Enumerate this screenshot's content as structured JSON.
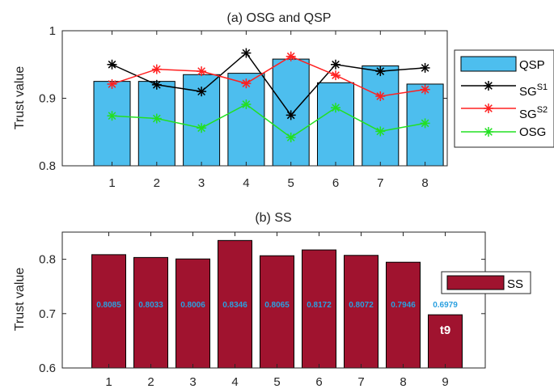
{
  "chart_data": [
    {
      "type": "bar",
      "title": "(a) OSG and QSP",
      "ylabel": "Trust value",
      "xlabel": "",
      "categories": [
        "1",
        "2",
        "3",
        "4",
        "5",
        "6",
        "7",
        "8"
      ],
      "ylim": [
        0.8,
        1.0
      ],
      "yticks": [
        "0.8",
        "0.9",
        "1"
      ],
      "grid": false,
      "legend_position": "right",
      "bar_series": {
        "name": "QSP",
        "color": "#4dbeee",
        "values": [
          0.925,
          0.925,
          0.935,
          0.937,
          0.958,
          0.923,
          0.948,
          0.921
        ]
      },
      "line_series": [
        {
          "name": "SG",
          "sup": "S1",
          "color": "#000000",
          "values": [
            0.95,
            0.92,
            0.91,
            0.967,
            0.875,
            0.95,
            0.94,
            0.945
          ]
        },
        {
          "name": "SG",
          "sup": "S2",
          "color": "#ff2020",
          "values": [
            0.921,
            0.943,
            0.94,
            0.922,
            0.962,
            0.934,
            0.903,
            0.913
          ]
        },
        {
          "name": "OSG",
          "sup": "",
          "color": "#22e022",
          "values": [
            0.874,
            0.87,
            0.856,
            0.891,
            0.842,
            0.886,
            0.851,
            0.863
          ]
        }
      ]
    },
    {
      "type": "bar",
      "title": "(b) SS",
      "ylabel": "Trust value",
      "xlabel": "",
      "categories": [
        "1",
        "2",
        "3",
        "4",
        "5",
        "6",
        "7",
        "8",
        "9"
      ],
      "ylim": [
        0.6,
        0.85
      ],
      "yticks": [
        "0.6",
        "0.7",
        "0.8"
      ],
      "grid": false,
      "legend_position": "right",
      "series": [
        {
          "name": "SS",
          "color": "#a0132f",
          "values": [
            0.8085,
            0.8033,
            0.8006,
            0.8346,
            0.8065,
            0.8172,
            0.8072,
            0.7946,
            0.6979
          ],
          "data_labels": [
            "0.8085",
            "0.8033",
            "0.8006",
            "0.8346",
            "0.8065",
            "0.8172",
            "0.8072",
            "0.7946",
            "0.6979"
          ],
          "label_color": "#2aa0e0"
        }
      ],
      "annotations": [
        {
          "category": "9",
          "text": "t9",
          "color": "#ffffff"
        }
      ]
    }
  ]
}
